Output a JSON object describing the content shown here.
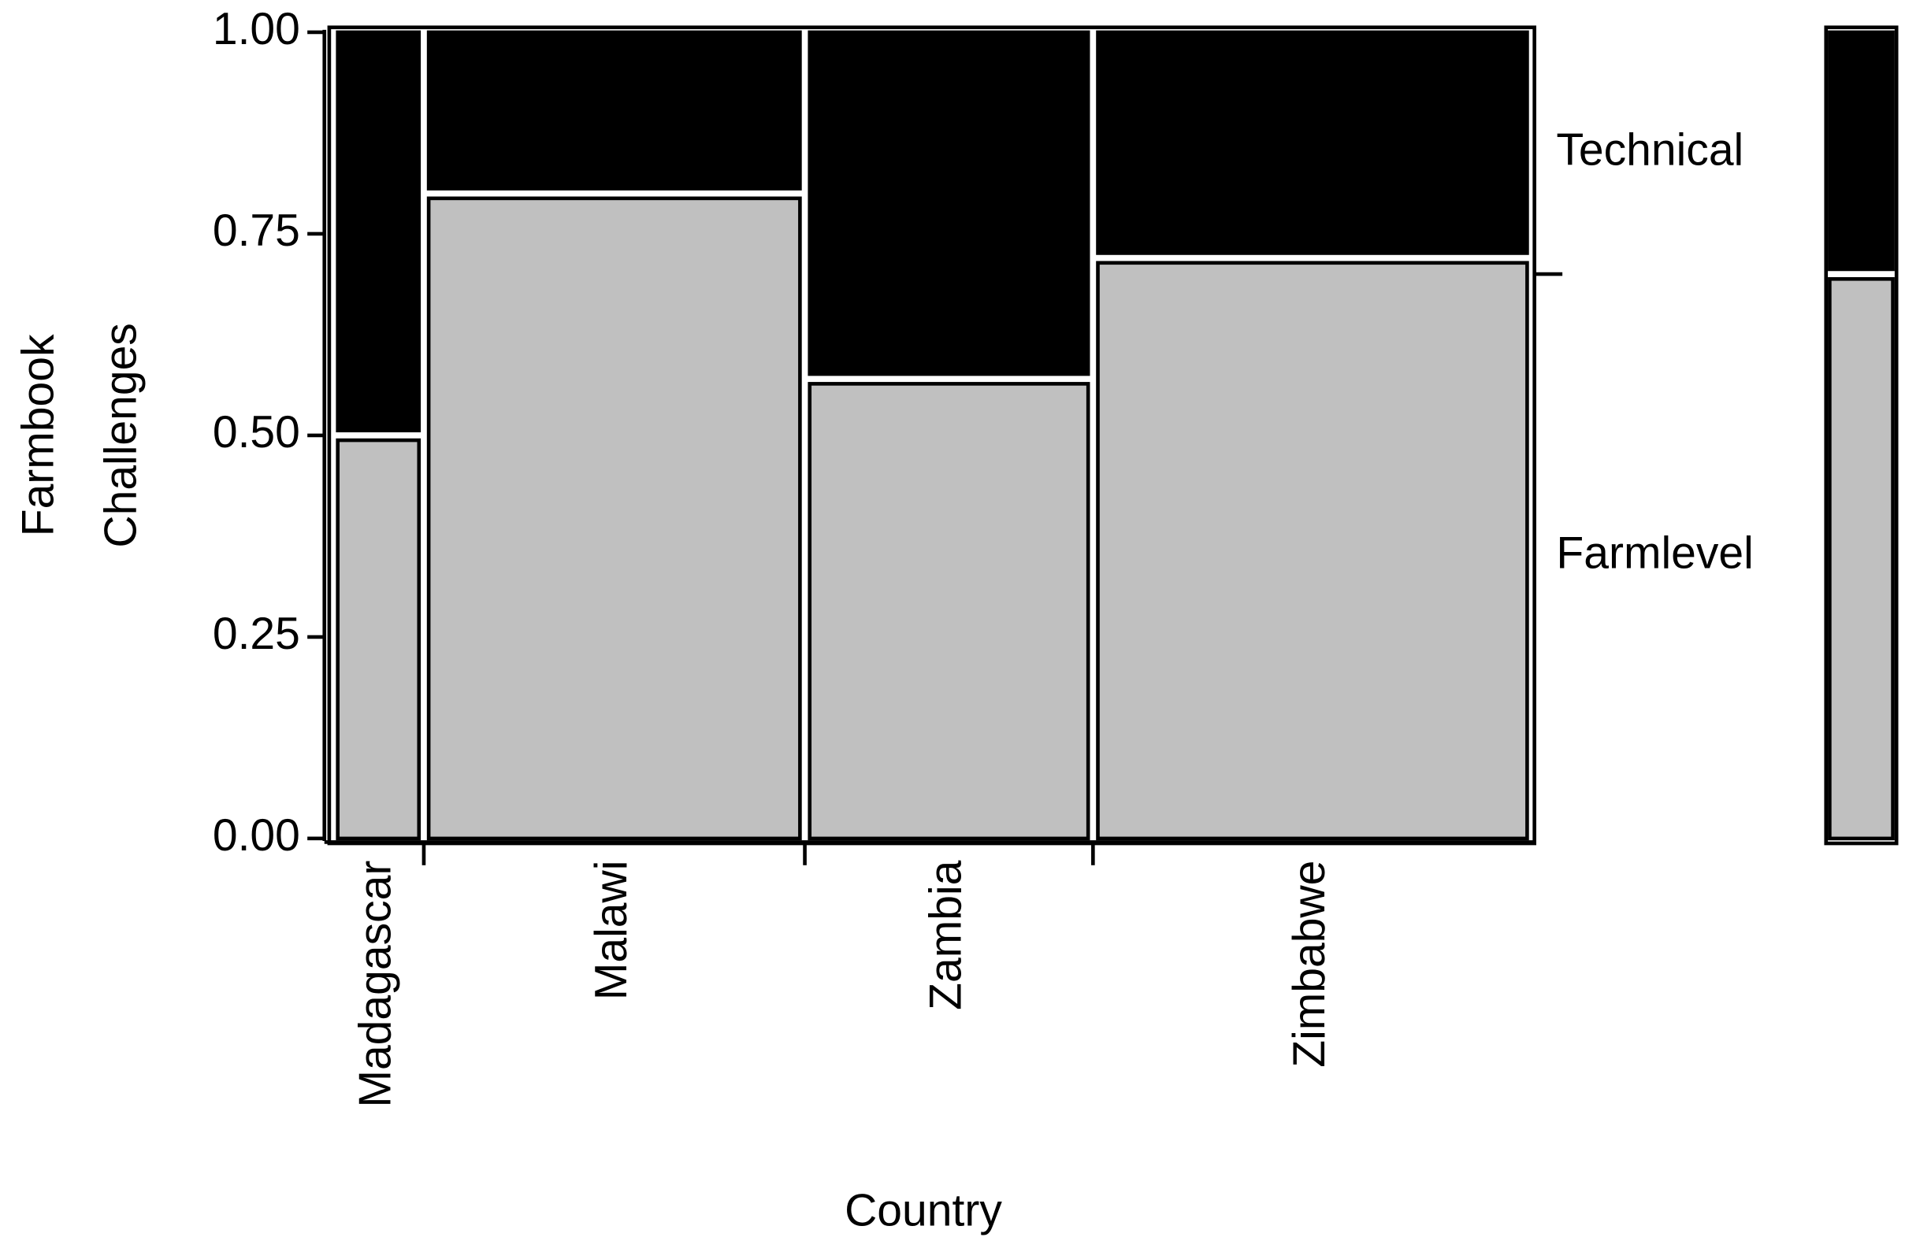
{
  "chart_data": {
    "type": "mosaic",
    "xlabel": "Country",
    "ylabel": [
      "Farmbook",
      "Challenges"
    ],
    "categories": [
      "Madagascar",
      "Malawi",
      "Zambia",
      "Zimbabwe"
    ],
    "shares": [
      0.07,
      0.32,
      0.24,
      0.37
    ],
    "series": [
      {
        "name": "Farmlevel",
        "color": "#c0c0c0",
        "values": [
          0.5,
          0.8,
          0.57,
          0.72
        ],
        "marginal": 0.7
      },
      {
        "name": "Technical",
        "color": "#000000",
        "values": [
          0.5,
          0.2,
          0.43,
          0.28
        ],
        "marginal": 0.3
      }
    ],
    "ylim": [
      0,
      1
    ],
    "yticks": [
      {
        "value": 0,
        "label": "0.00"
      },
      {
        "value": 0.25,
        "label": "0.25"
      },
      {
        "value": 0.5,
        "label": "0.50"
      },
      {
        "value": 0.75,
        "label": "0.75"
      },
      {
        "value": 1,
        "label": "1.00"
      }
    ],
    "grid": false
  }
}
